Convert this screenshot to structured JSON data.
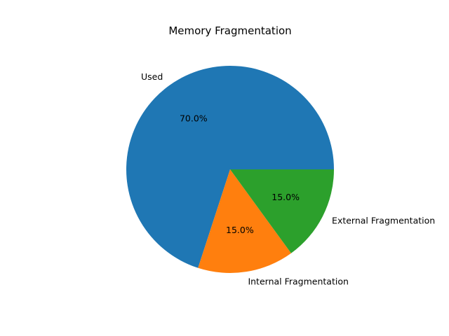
{
  "chart_data": {
    "type": "pie",
    "title": "Memory Fragmentation",
    "slices": [
      {
        "label": "Used",
        "value": 70.0,
        "pct_label": "70.0%",
        "color": "#1f77b4"
      },
      {
        "label": "Internal Fragmentation",
        "value": 15.0,
        "pct_label": "15.0%",
        "color": "#ff7f0e"
      },
      {
        "label": "External Fragmentation",
        "value": 15.0,
        "pct_label": "15.0%",
        "color": "#2ca02c"
      }
    ],
    "start_angle_deg": 0,
    "direction": "counterclockwise",
    "legend": "none"
  }
}
